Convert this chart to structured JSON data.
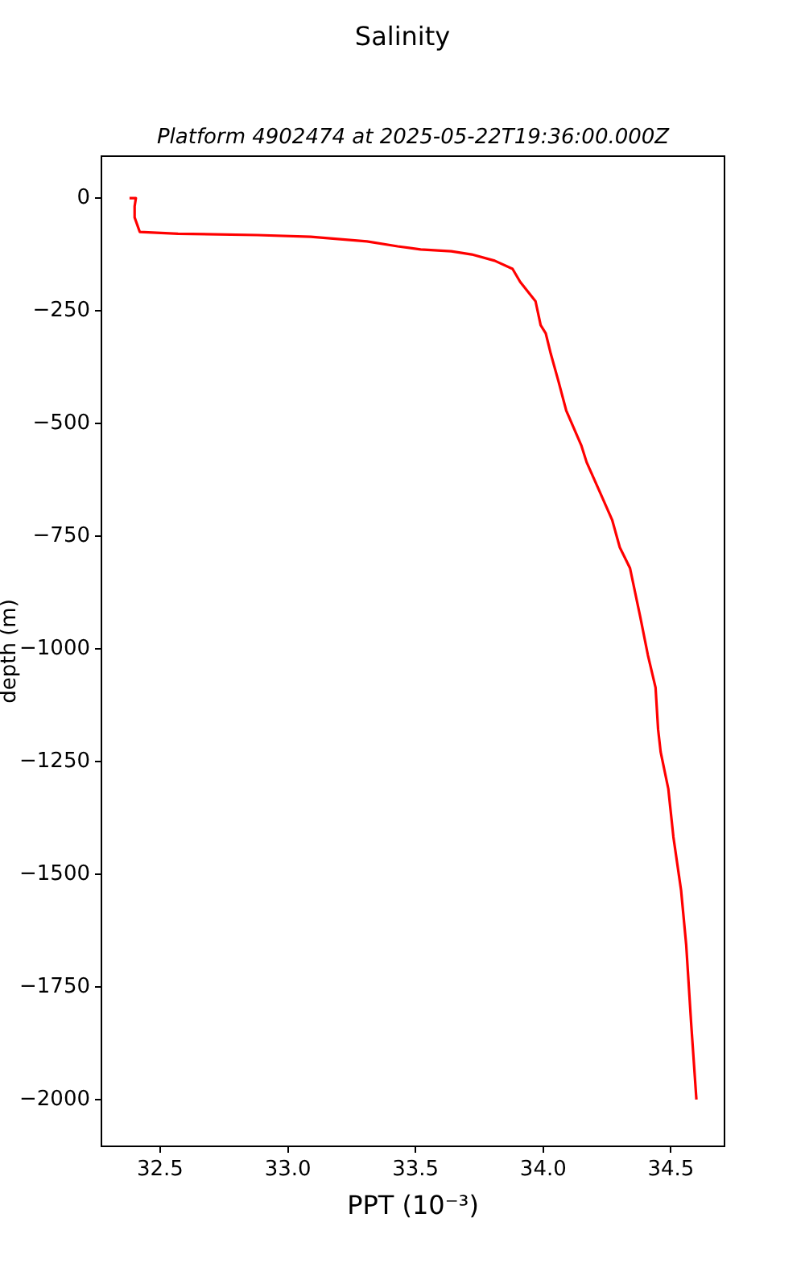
{
  "chart_data": {
    "type": "line",
    "title": "Salinity",
    "subtitle": "Platform 4902474 at 2025-05-22T19:36:00.000Z",
    "xlabel": "PPT (10⁻³)",
    "ylabel": "depth (m)",
    "series": [
      {
        "color": "#ff0000",
        "x": [
          32.38,
          32.405,
          32.4,
          32.4,
          32.42,
          32.57,
          32.88,
          33.09,
          33.31,
          33.43,
          33.52,
          33.64,
          33.72,
          33.81,
          33.88,
          33.91,
          33.97,
          33.99,
          34.01,
          34.03,
          34.06,
          34.09,
          34.15,
          34.17,
          34.22,
          34.27,
          34.3,
          34.34,
          34.38,
          34.41,
          34.44,
          34.45,
          34.46,
          34.49,
          34.51,
          34.54,
          34.56,
          34.58,
          34.6
        ],
        "values": [
          0,
          0,
          -18,
          -43,
          -75,
          -79,
          -82,
          -86,
          -96,
          -107,
          -114,
          -118,
          -125,
          -139,
          -157,
          -186,
          -229,
          -282,
          -300,
          -346,
          -407,
          -471,
          -550,
          -586,
          -650,
          -714,
          -775,
          -821,
          -929,
          -1014,
          -1086,
          -1179,
          -1229,
          -1311,
          -1418,
          -1536,
          -1657,
          -1836,
          -2000
        ]
      }
    ],
    "xlim": [
      32.27,
      34.71
    ],
    "ylim": [
      -2104,
      93
    ],
    "xticks": [
      32.5,
      {
        "value": 33,
        "label": "33.0"
      },
      33.5,
      {
        "value": 34,
        "label": "34.0"
      },
      34.5
    ],
    "yticks": [
      -2000,
      -1750,
      -1500,
      -1250,
      -1000,
      -750,
      -500,
      -250,
      0
    ],
    "grid": false,
    "legend": false,
    "marker": "none",
    "line_style": "solid"
  }
}
